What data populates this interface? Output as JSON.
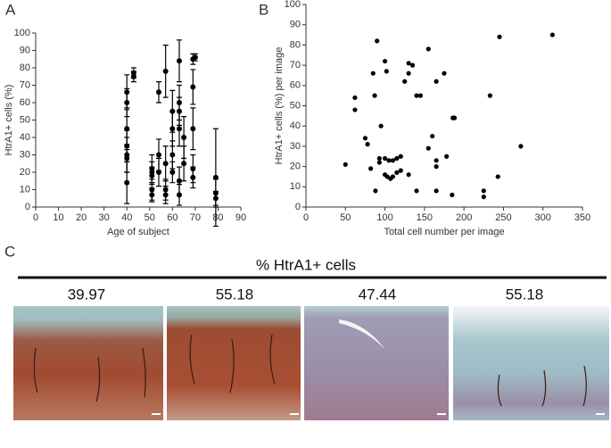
{
  "panel_labels": [
    "A",
    "B",
    "C"
  ],
  "chart_data": [
    {
      "type": "scatter",
      "xlabel": "Age of subject",
      "ylabel": "HtrA1+ cells (%)",
      "x": [
        40,
        40,
        40,
        40,
        40,
        40,
        40,
        43,
        43,
        51,
        51,
        51,
        51,
        51,
        54,
        54,
        54,
        57,
        57,
        57,
        57,
        60,
        60,
        60,
        60,
        63,
        63,
        63,
        63,
        63,
        63,
        65,
        65,
        69,
        69,
        69,
        69,
        69,
        70,
        79,
        79,
        79
      ],
      "values": [
        66,
        60,
        45,
        35,
        30,
        28,
        14,
        77,
        75,
        22,
        20,
        18,
        10,
        7,
        66,
        30,
        20,
        78,
        10,
        7,
        25,
        55,
        45,
        30,
        20,
        84,
        60,
        55,
        45,
        15,
        7,
        40,
        25,
        85,
        69,
        45,
        22,
        17,
        86,
        17,
        8,
        5
      ],
      "errors": [
        10,
        8,
        12,
        9,
        10,
        8,
        12,
        3,
        3,
        8,
        6,
        5,
        6,
        4,
        6,
        9,
        8,
        15,
        6,
        5,
        10,
        12,
        10,
        8,
        6,
        12,
        10,
        8,
        10,
        8,
        6,
        12,
        10,
        3,
        10,
        12,
        8,
        6,
        2,
        28,
        8,
        4
      ],
      "color": "#000000",
      "xlim": [
        0,
        90
      ],
      "xticks": [
        0,
        10,
        20,
        30,
        40,
        50,
        60,
        70,
        80,
        90
      ],
      "ylim": [
        0,
        100
      ],
      "yticks": [
        0,
        10,
        20,
        30,
        40,
        50,
        60,
        70,
        80,
        90,
        100
      ]
    },
    {
      "type": "scatter",
      "xlabel": "Total cell number per image",
      "ylabel": "HtrA1+ cells (%) per image",
      "x": [
        90,
        100,
        102,
        130,
        130,
        125,
        145,
        155,
        175,
        165,
        85,
        62,
        62,
        87,
        245,
        312,
        233,
        272,
        243,
        225,
        225,
        188,
        186,
        178,
        160,
        165,
        165,
        155,
        140,
        165,
        185,
        50,
        75,
        78,
        82,
        95,
        93,
        93,
        100,
        105,
        110,
        115,
        120,
        100,
        103,
        107,
        110,
        115,
        120,
        130,
        88,
        140,
        135
      ],
      "values": [
        82,
        72,
        67,
        71,
        66,
        62,
        55,
        78,
        66,
        62,
        66,
        54,
        48,
        55,
        84,
        85,
        55,
        30,
        15,
        8,
        5,
        44,
        44,
        25,
        35,
        23,
        20,
        29,
        8,
        8,
        6,
        21,
        34,
        31,
        19,
        40,
        22,
        24,
        24,
        23,
        23,
        24,
        25,
        16,
        15,
        14,
        15,
        17,
        18,
        16,
        8,
        55,
        70
      ],
      "color": "#000000",
      "xlim": [
        0,
        350
      ],
      "xticks": [
        0,
        50,
        100,
        150,
        200,
        250,
        300,
        350
      ],
      "ylim": [
        0,
        100
      ],
      "yticks": [
        0,
        10,
        20,
        30,
        40,
        50,
        60,
        70,
        80,
        90,
        100
      ]
    }
  ],
  "panel_c": {
    "title": "% HtrA1+ cells",
    "values": [
      39.97,
      55.18,
      47.44,
      55.18
    ]
  }
}
